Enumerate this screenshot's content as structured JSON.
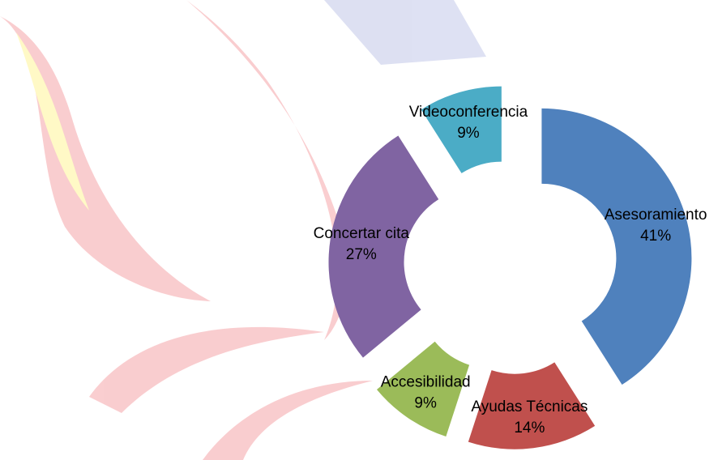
{
  "chart_data": {
    "type": "pie",
    "categories": [
      "Asesoramiento",
      "Ayudas Técnicas",
      "Accesibilidad",
      "Concertar cita",
      "Videoconferencia"
    ],
    "values": [
      41,
      14,
      9,
      27,
      9
    ],
    "value_labels": [
      "41%",
      "14%",
      "9%",
      "27%",
      "9%"
    ],
    "colors": [
      "#4f81bd",
      "#c0504d",
      "#9bbb59",
      "#8064a2",
      "#4bacc6"
    ],
    "donut": true,
    "exploded": true
  }
}
